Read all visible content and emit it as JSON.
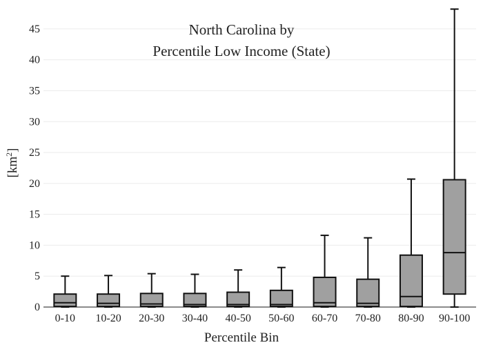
{
  "chart_data": {
    "type": "box",
    "title_lines": [
      "North Carolina  by",
      "Percentile Low Income (State)"
    ],
    "xlabel": "Percentile Bin",
    "ylabel_base": "[km",
    "ylabel_sup": "2",
    "ylabel_end": "]",
    "ylim": [
      0,
      48
    ],
    "yticks": [
      0,
      5,
      10,
      15,
      20,
      25,
      30,
      35,
      40,
      45
    ],
    "grid": true,
    "colors": {
      "box_fill": "#a0a0a0",
      "stroke": "#111111",
      "grid": "#ebebeb"
    },
    "categories": [
      "0-10",
      "10-20",
      "20-30",
      "30-40",
      "40-50",
      "50-60",
      "60-70",
      "70-80",
      "80-90",
      "90-100"
    ],
    "boxes": [
      {
        "low": 0,
        "q1": 0.1,
        "median": 0.7,
        "q3": 2.1,
        "high": 5.0
      },
      {
        "low": 0,
        "q1": 0.1,
        "median": 0.6,
        "q3": 2.1,
        "high": 5.1
      },
      {
        "low": 0,
        "q1": 0.1,
        "median": 0.5,
        "q3": 2.2,
        "high": 5.4
      },
      {
        "low": 0,
        "q1": 0.1,
        "median": 0.4,
        "q3": 2.2,
        "high": 5.3
      },
      {
        "low": 0,
        "q1": 0.1,
        "median": 0.4,
        "q3": 2.4,
        "high": 6.0
      },
      {
        "low": 0,
        "q1": 0.1,
        "median": 0.4,
        "q3": 2.7,
        "high": 6.4
      },
      {
        "low": 0,
        "q1": 0.1,
        "median": 0.7,
        "q3": 4.8,
        "high": 11.6
      },
      {
        "low": 0,
        "q1": 0.1,
        "median": 0.6,
        "q3": 4.5,
        "high": 11.2
      },
      {
        "low": 0,
        "q1": 0.1,
        "median": 1.7,
        "q3": 8.4,
        "high": 20.7
      },
      {
        "low": 0,
        "q1": 2.1,
        "median": 8.8,
        "q3": 20.6,
        "high": 48.2
      }
    ]
  }
}
